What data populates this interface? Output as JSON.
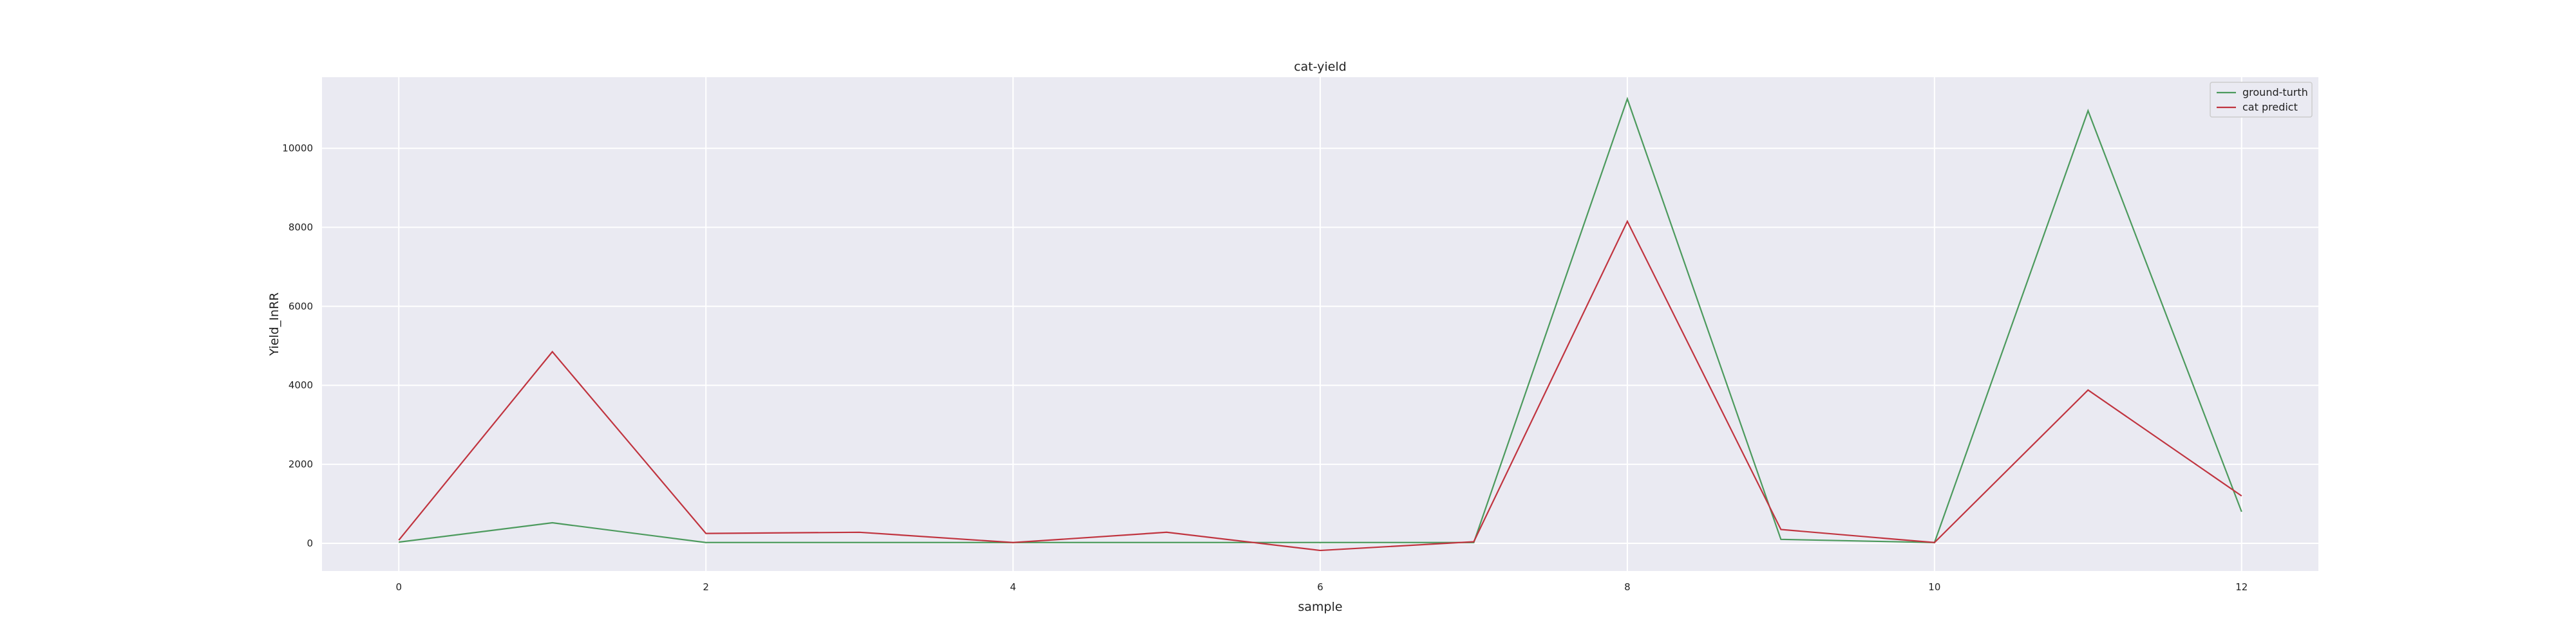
{
  "chart_data": {
    "type": "line",
    "title": "cat-yield",
    "xlabel": "sample",
    "ylabel": "Yield_InRR",
    "x": [
      0,
      1,
      2,
      3,
      4,
      5,
      6,
      7,
      8,
      9,
      10,
      11,
      12
    ],
    "series": [
      {
        "name": "ground-turth",
        "color": "#4c9a5d",
        "values": [
          30,
          520,
          20,
          20,
          20,
          20,
          20,
          20,
          11250,
          100,
          20,
          10950,
          800
        ]
      },
      {
        "name": "cat predict",
        "color": "#c0343f",
        "values": [
          80,
          4850,
          250,
          280,
          20,
          280,
          -180,
          40,
          8150,
          350,
          20,
          3880,
          1200
        ]
      }
    ],
    "xlim": [
      -0.5,
      12.5
    ],
    "ylim": [
      -700,
      11800
    ],
    "xticks": [
      0,
      2,
      4,
      6,
      8,
      10,
      12
    ],
    "yticks": [
      0,
      2000,
      4000,
      6000,
      8000,
      10000
    ],
    "grid": true,
    "legend_position": "top-right",
    "background_color": "#eaeaf2",
    "grid_color": "#ffffff"
  }
}
